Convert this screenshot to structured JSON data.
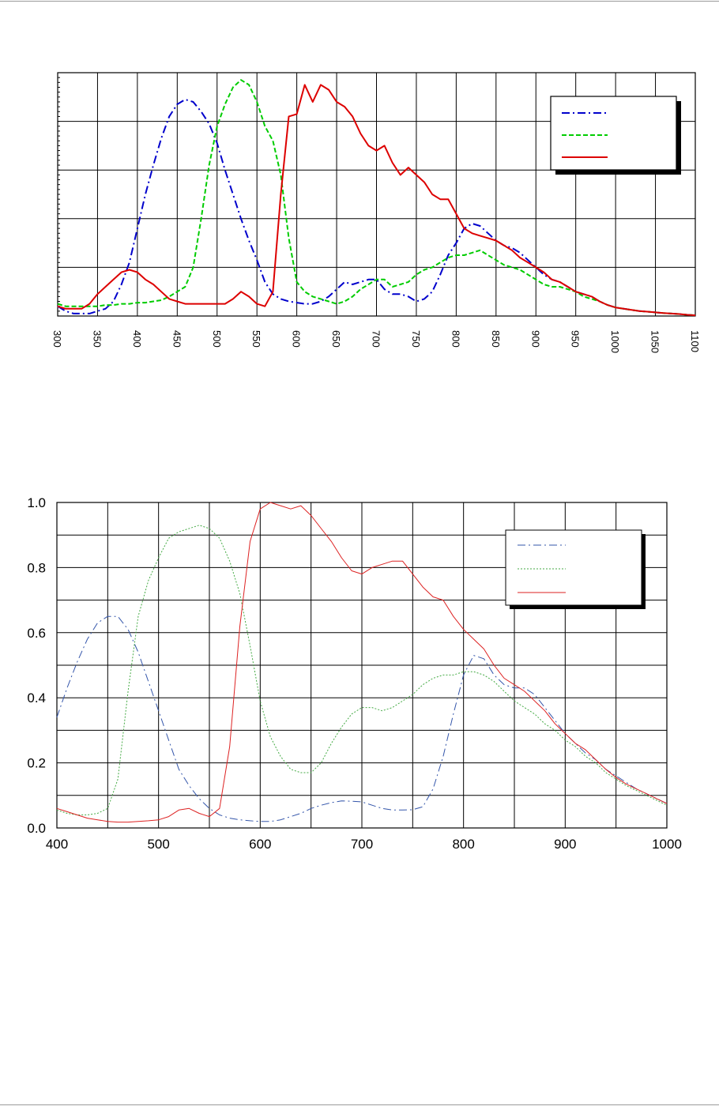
{
  "chart_data": [
    {
      "type": "line",
      "xlim": [
        300,
        1100
      ],
      "ylim": [
        0,
        1
      ],
      "grid": true,
      "legend_position": "top-right",
      "xticks": [
        "300",
        "350",
        "400",
        "450",
        "500",
        "550",
        "600",
        "650",
        "700",
        "750",
        "800",
        "850",
        "900",
        "950",
        "1000",
        "1050",
        "1100"
      ],
      "yticks": [],
      "series": [
        {
          "color": "#0000cc",
          "dash": "dashdot",
          "x": [
            300,
            310,
            320,
            330,
            340,
            350,
            360,
            370,
            380,
            390,
            400,
            410,
            420,
            430,
            440,
            450,
            460,
            470,
            480,
            490,
            500,
            510,
            520,
            530,
            540,
            550,
            560,
            570,
            580,
            590,
            600,
            610,
            620,
            630,
            640,
            650,
            660,
            670,
            680,
            690,
            700,
            710,
            720,
            730,
            740,
            750,
            760,
            770,
            780,
            790,
            800,
            810,
            820,
            830,
            840,
            850,
            860,
            870,
            880,
            890,
            900,
            910,
            920,
            930,
            940,
            950,
            960,
            970,
            980,
            990,
            1000,
            1010,
            1020,
            1030,
            1040,
            1050,
            1060,
            1070,
            1080,
            1090,
            1100
          ],
          "y": [
            0.04,
            0.02,
            0.01,
            0.01,
            0.01,
            0.02,
            0.03,
            0.06,
            0.13,
            0.22,
            0.36,
            0.5,
            0.62,
            0.73,
            0.82,
            0.87,
            0.89,
            0.88,
            0.84,
            0.79,
            0.71,
            0.6,
            0.5,
            0.4,
            0.31,
            0.23,
            0.14,
            0.09,
            0.07,
            0.06,
            0.055,
            0.05,
            0.05,
            0.06,
            0.08,
            0.11,
            0.14,
            0.13,
            0.14,
            0.15,
            0.15,
            0.11,
            0.09,
            0.09,
            0.08,
            0.06,
            0.07,
            0.1,
            0.17,
            0.25,
            0.3,
            0.36,
            0.38,
            0.37,
            0.34,
            0.31,
            0.29,
            0.28,
            0.26,
            0.23,
            0.2,
            0.17,
            0.15,
            0.14,
            0.12,
            0.1,
            0.09,
            0.08,
            0.06,
            0.045,
            0.035,
            0.03,
            0.025,
            0.02,
            0.018,
            0.015,
            0.012,
            0.01,
            0.008,
            0.005,
            0.003
          ]
        },
        {
          "color": "#00cc00",
          "dash": "dash",
          "x": [
            300,
            310,
            320,
            330,
            340,
            350,
            360,
            370,
            380,
            390,
            400,
            410,
            420,
            430,
            440,
            450,
            460,
            470,
            480,
            490,
            500,
            510,
            520,
            530,
            540,
            550,
            560,
            570,
            580,
            590,
            600,
            610,
            620,
            630,
            640,
            650,
            660,
            670,
            680,
            690,
            700,
            710,
            720,
            730,
            740,
            750,
            760,
            770,
            780,
            790,
            800,
            810,
            820,
            830,
            840,
            850,
            860,
            870,
            880,
            890,
            900,
            910,
            920,
            930,
            940,
            950,
            960,
            970,
            980,
            990,
            1000,
            1010,
            1020,
            1030,
            1040,
            1050,
            1060,
            1070,
            1080,
            1090,
            1100
          ],
          "y": [
            0.05,
            0.04,
            0.04,
            0.04,
            0.04,
            0.04,
            0.045,
            0.045,
            0.05,
            0.05,
            0.055,
            0.055,
            0.06,
            0.065,
            0.08,
            0.1,
            0.12,
            0.2,
            0.4,
            0.62,
            0.78,
            0.87,
            0.94,
            0.97,
            0.95,
            0.88,
            0.78,
            0.72,
            0.58,
            0.32,
            0.14,
            0.1,
            0.08,
            0.07,
            0.06,
            0.05,
            0.06,
            0.08,
            0.11,
            0.13,
            0.15,
            0.15,
            0.12,
            0.13,
            0.14,
            0.17,
            0.19,
            0.2,
            0.22,
            0.24,
            0.25,
            0.25,
            0.26,
            0.27,
            0.25,
            0.23,
            0.21,
            0.2,
            0.19,
            0.17,
            0.15,
            0.13,
            0.12,
            0.12,
            0.11,
            0.1,
            0.08,
            0.07,
            0.06,
            0.045,
            0.035,
            0.03,
            0.025,
            0.02,
            0.018,
            0.015,
            0.012,
            0.01,
            0.008,
            0.005,
            0.003
          ]
        },
        {
          "color": "#dd0000",
          "dash": "solid",
          "x": [
            300,
            310,
            320,
            330,
            340,
            350,
            360,
            370,
            380,
            390,
            400,
            410,
            420,
            430,
            440,
            450,
            460,
            470,
            480,
            490,
            500,
            510,
            520,
            530,
            540,
            550,
            560,
            570,
            580,
            590,
            600,
            610,
            620,
            630,
            640,
            650,
            660,
            670,
            680,
            690,
            700,
            710,
            720,
            730,
            740,
            750,
            760,
            770,
            780,
            790,
            800,
            810,
            820,
            830,
            840,
            850,
            860,
            870,
            880,
            890,
            900,
            910,
            920,
            930,
            940,
            950,
            960,
            970,
            980,
            990,
            1000,
            1010,
            1020,
            1030,
            1040,
            1050,
            1060,
            1070,
            1080,
            1090,
            1100
          ],
          "y": [
            0.04,
            0.03,
            0.03,
            0.03,
            0.05,
            0.09,
            0.12,
            0.15,
            0.18,
            0.19,
            0.18,
            0.15,
            0.13,
            0.1,
            0.07,
            0.06,
            0.05,
            0.05,
            0.05,
            0.05,
            0.05,
            0.05,
            0.07,
            0.1,
            0.08,
            0.05,
            0.04,
            0.1,
            0.5,
            0.82,
            0.83,
            0.95,
            0.88,
            0.95,
            0.93,
            0.88,
            0.86,
            0.82,
            0.75,
            0.7,
            0.68,
            0.7,
            0.63,
            0.58,
            0.61,
            0.58,
            0.55,
            0.5,
            0.48,
            0.48,
            0.42,
            0.36,
            0.34,
            0.33,
            0.32,
            0.31,
            0.29,
            0.27,
            0.24,
            0.22,
            0.2,
            0.18,
            0.15,
            0.14,
            0.12,
            0.1,
            0.09,
            0.08,
            0.06,
            0.045,
            0.035,
            0.03,
            0.025,
            0.02,
            0.018,
            0.015,
            0.012,
            0.01,
            0.008,
            0.005,
            0.003
          ]
        }
      ]
    },
    {
      "type": "line",
      "xlim": [
        400,
        1000
      ],
      "ylim": [
        0,
        1
      ],
      "grid": true,
      "legend_position": "top-right",
      "xticks": [
        "400",
        "500",
        "600",
        "700",
        "800",
        "900",
        "1000"
      ],
      "yticks": [
        "0.0",
        "0.2",
        "0.4",
        "0.6",
        "0.8",
        "1.0"
      ],
      "series": [
        {
          "color": "#3355aa",
          "dash": "dashdot",
          "x": [
            400,
            410,
            420,
            430,
            440,
            450,
            460,
            470,
            480,
            490,
            500,
            510,
            520,
            530,
            540,
            550,
            560,
            570,
            580,
            590,
            600,
            610,
            620,
            630,
            640,
            650,
            660,
            670,
            680,
            690,
            700,
            710,
            720,
            730,
            740,
            750,
            760,
            770,
            780,
            790,
            800,
            810,
            820,
            830,
            840,
            850,
            860,
            870,
            880,
            890,
            900,
            910,
            920,
            930,
            940,
            950,
            960,
            970,
            980,
            990,
            1000
          ],
          "y": [
            0.34,
            0.43,
            0.51,
            0.58,
            0.63,
            0.65,
            0.65,
            0.61,
            0.54,
            0.45,
            0.36,
            0.27,
            0.18,
            0.13,
            0.09,
            0.06,
            0.04,
            0.03,
            0.025,
            0.022,
            0.02,
            0.02,
            0.025,
            0.035,
            0.045,
            0.06,
            0.07,
            0.078,
            0.083,
            0.082,
            0.08,
            0.07,
            0.06,
            0.055,
            0.055,
            0.056,
            0.065,
            0.12,
            0.22,
            0.35,
            0.47,
            0.53,
            0.52,
            0.47,
            0.44,
            0.43,
            0.43,
            0.41,
            0.37,
            0.33,
            0.29,
            0.26,
            0.23,
            0.21,
            0.18,
            0.16,
            0.14,
            0.12,
            0.105,
            0.09,
            0.075
          ]
        },
        {
          "color": "#44aa44",
          "dash": "dot",
          "x": [
            400,
            410,
            420,
            430,
            440,
            450,
            460,
            470,
            480,
            490,
            500,
            510,
            520,
            530,
            540,
            550,
            560,
            570,
            580,
            590,
            600,
            610,
            620,
            630,
            640,
            650,
            660,
            670,
            680,
            690,
            700,
            710,
            720,
            730,
            740,
            750,
            760,
            770,
            780,
            790,
            800,
            810,
            820,
            830,
            840,
            850,
            860,
            870,
            880,
            890,
            900,
            910,
            920,
            930,
            940,
            950,
            960,
            970,
            980,
            990,
            1000
          ],
          "y": [
            0.055,
            0.045,
            0.04,
            0.04,
            0.045,
            0.06,
            0.15,
            0.42,
            0.65,
            0.76,
            0.83,
            0.89,
            0.91,
            0.92,
            0.93,
            0.92,
            0.89,
            0.82,
            0.72,
            0.56,
            0.39,
            0.28,
            0.22,
            0.18,
            0.17,
            0.17,
            0.2,
            0.26,
            0.31,
            0.35,
            0.37,
            0.37,
            0.36,
            0.37,
            0.39,
            0.41,
            0.44,
            0.46,
            0.47,
            0.47,
            0.48,
            0.48,
            0.47,
            0.45,
            0.42,
            0.39,
            0.37,
            0.35,
            0.32,
            0.3,
            0.27,
            0.25,
            0.22,
            0.2,
            0.17,
            0.15,
            0.13,
            0.115,
            0.1,
            0.085,
            0.07
          ]
        },
        {
          "color": "#dd2222",
          "dash": "solid",
          "x": [
            400,
            410,
            420,
            430,
            440,
            450,
            460,
            470,
            480,
            490,
            500,
            510,
            520,
            530,
            540,
            550,
            560,
            570,
            580,
            590,
            600,
            610,
            620,
            630,
            640,
            650,
            660,
            670,
            680,
            690,
            700,
            710,
            720,
            730,
            740,
            750,
            760,
            770,
            780,
            790,
            800,
            810,
            820,
            830,
            840,
            850,
            860,
            870,
            880,
            890,
            900,
            910,
            920,
            930,
            940,
            950,
            960,
            970,
            980,
            990,
            1000
          ],
          "y": [
            0.06,
            0.05,
            0.04,
            0.03,
            0.025,
            0.02,
            0.018,
            0.018,
            0.02,
            0.022,
            0.025,
            0.035,
            0.055,
            0.06,
            0.045,
            0.035,
            0.06,
            0.25,
            0.62,
            0.88,
            0.98,
            1.0,
            0.99,
            0.98,
            0.99,
            0.96,
            0.92,
            0.88,
            0.83,
            0.79,
            0.78,
            0.8,
            0.81,
            0.82,
            0.82,
            0.78,
            0.74,
            0.71,
            0.7,
            0.65,
            0.61,
            0.58,
            0.55,
            0.5,
            0.46,
            0.44,
            0.42,
            0.39,
            0.36,
            0.32,
            0.29,
            0.26,
            0.24,
            0.21,
            0.18,
            0.155,
            0.135,
            0.12,
            0.105,
            0.09,
            0.075
          ]
        }
      ]
    }
  ]
}
